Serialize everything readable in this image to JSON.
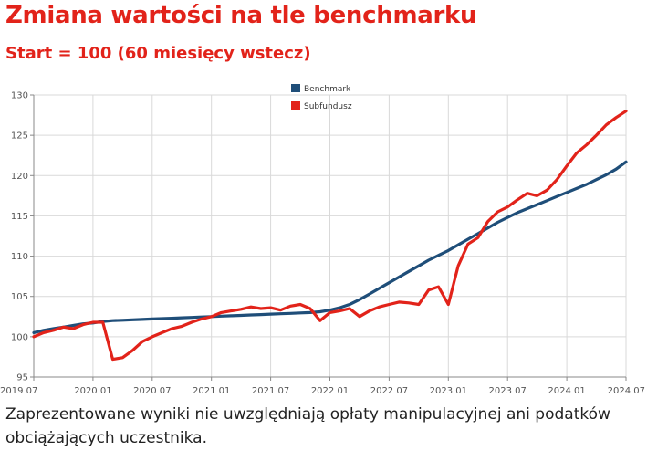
{
  "page": {
    "title": "Zmiana wartości na tle benchmarku",
    "subtitle": "Start = 100 (60 miesięcy wstecz)",
    "footnote": "Zaprezentowane wyniki nie uwzględniają opłaty manipulacyjnej ani podatków obciążających uczestnika."
  },
  "chart_data": {
    "type": "line",
    "grid": true,
    "legend_position": "top-center",
    "ylim": [
      95,
      130
    ],
    "yticks": [
      95,
      100,
      105,
      110,
      115,
      120,
      125,
      130
    ],
    "x_range": [
      "2019-07",
      "2024-07"
    ],
    "xticks": [
      "2019 07",
      "2020 01",
      "2020 07",
      "2021 01",
      "2021 07",
      "2022 01",
      "2022 07",
      "2023 01",
      "2023 07",
      "2024 01",
      "2024 07"
    ],
    "x": [
      "2019-07",
      "2019-08",
      "2019-09",
      "2019-10",
      "2019-11",
      "2019-12",
      "2020-01",
      "2020-02",
      "2020-03",
      "2020-04",
      "2020-05",
      "2020-06",
      "2020-07",
      "2020-08",
      "2020-09",
      "2020-10",
      "2020-11",
      "2020-12",
      "2021-01",
      "2021-02",
      "2021-03",
      "2021-04",
      "2021-05",
      "2021-06",
      "2021-07",
      "2021-08",
      "2021-09",
      "2021-10",
      "2021-11",
      "2021-12",
      "2022-01",
      "2022-02",
      "2022-03",
      "2022-04",
      "2022-05",
      "2022-06",
      "2022-07",
      "2022-08",
      "2022-09",
      "2022-10",
      "2022-11",
      "2022-12",
      "2023-01",
      "2023-02",
      "2023-03",
      "2023-04",
      "2023-05",
      "2023-06",
      "2023-07",
      "2023-08",
      "2023-09",
      "2023-10",
      "2023-11",
      "2023-12",
      "2024-01",
      "2024-02",
      "2024-03",
      "2024-04",
      "2024-05",
      "2024-06",
      "2024-07"
    ],
    "series": [
      {
        "name": "Benchmark",
        "color": "#1f4e79",
        "values": [
          100.5,
          100.8,
          101.0,
          101.2,
          101.4,
          101.6,
          101.7,
          101.9,
          102.0,
          102.05,
          102.1,
          102.15,
          102.2,
          102.25,
          102.3,
          102.35,
          102.4,
          102.45,
          102.5,
          102.55,
          102.6,
          102.65,
          102.7,
          102.75,
          102.8,
          102.85,
          102.9,
          102.95,
          103.0,
          103.1,
          103.3,
          103.6,
          104.0,
          104.6,
          105.3,
          106.0,
          106.7,
          107.4,
          108.1,
          108.8,
          109.5,
          110.1,
          110.7,
          111.4,
          112.1,
          112.8,
          113.5,
          114.2,
          114.8,
          115.4,
          115.9,
          116.4,
          116.9,
          117.4,
          117.9,
          118.4,
          118.9,
          119.5,
          120.1,
          120.8,
          121.7
        ]
      },
      {
        "name": "Subfundusz",
        "color": "#e2231a",
        "values": [
          100.0,
          100.5,
          100.8,
          101.2,
          101.0,
          101.5,
          101.8,
          101.8,
          97.2,
          97.4,
          98.3,
          99.4,
          100.0,
          100.5,
          101.0,
          101.3,
          101.8,
          102.2,
          102.5,
          103.0,
          103.2,
          103.4,
          103.7,
          103.5,
          103.6,
          103.3,
          103.8,
          104.0,
          103.5,
          102.0,
          103.0,
          103.2,
          103.5,
          102.5,
          103.2,
          103.7,
          104.0,
          104.3,
          104.2,
          104.0,
          105.8,
          106.2,
          104.0,
          108.8,
          111.5,
          112.3,
          114.3,
          115.5,
          116.1,
          117.0,
          117.8,
          117.5,
          118.2,
          119.5,
          121.2,
          122.8,
          123.8,
          125.0,
          126.3,
          127.2,
          128.0
        ]
      }
    ]
  }
}
